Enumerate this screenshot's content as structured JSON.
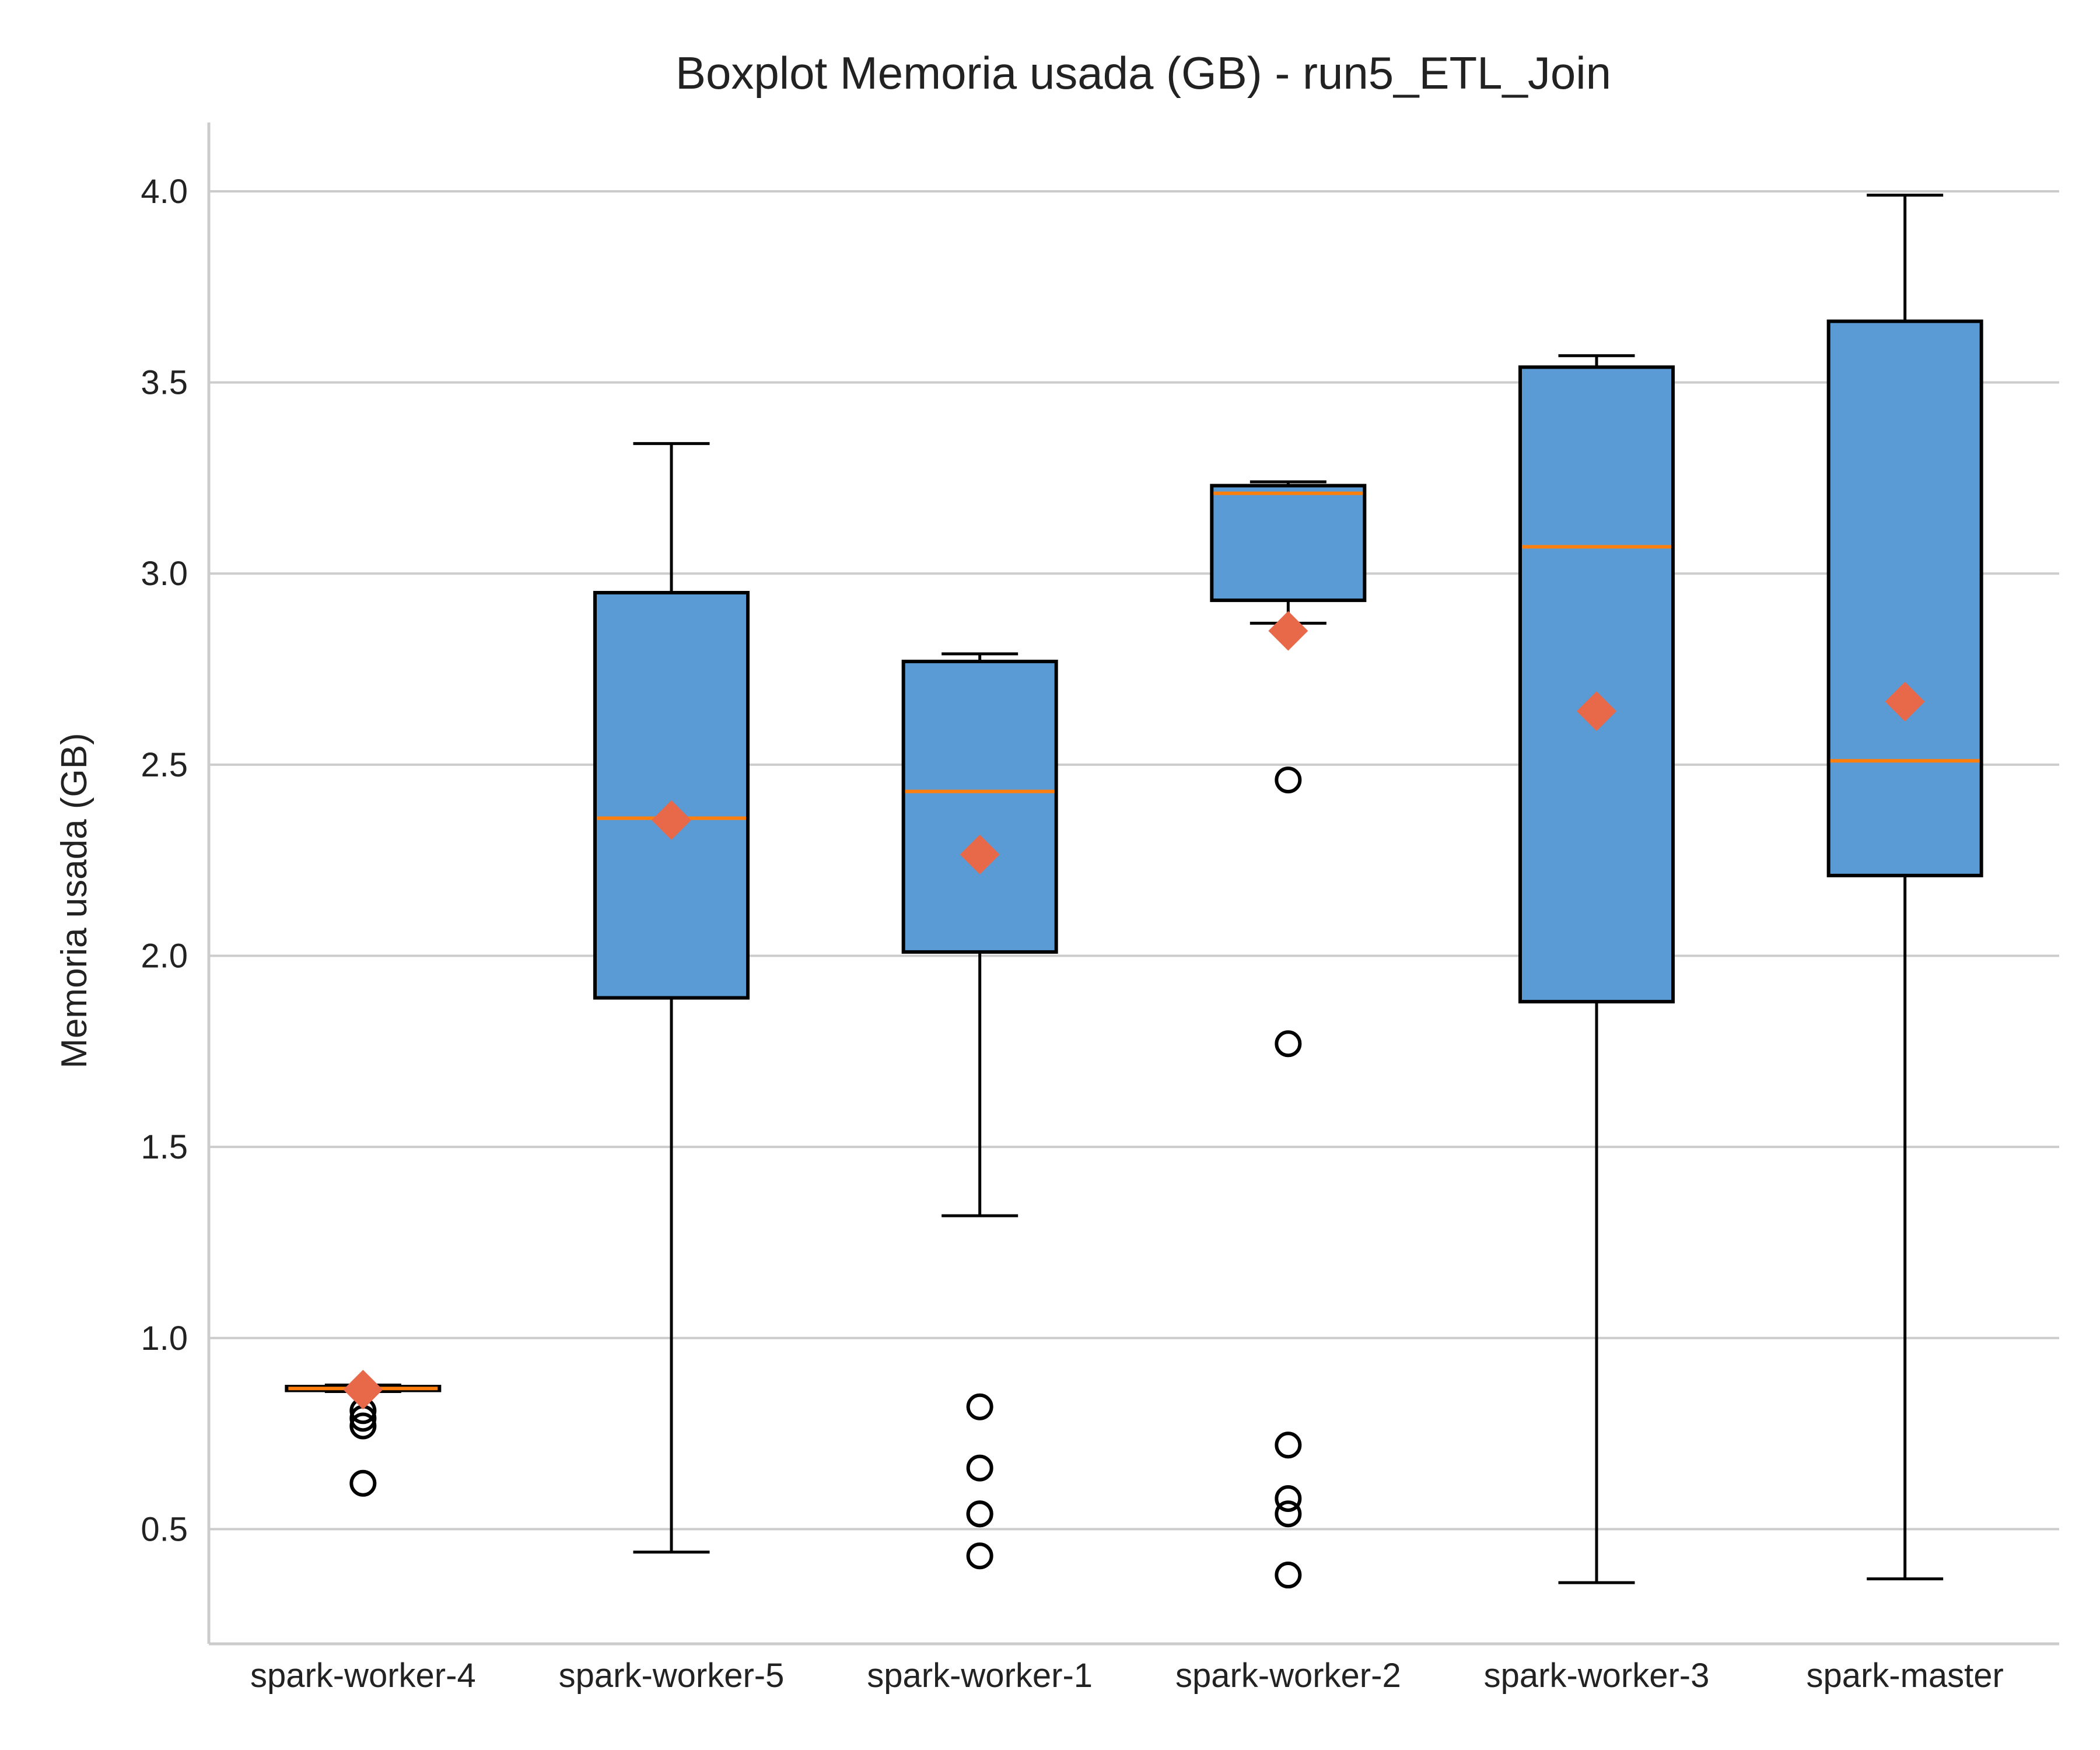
{
  "chart_data": {
    "type": "box",
    "title": "Boxplot Memoria usada (GB) - run5_ETL_Join",
    "xlabel": "",
    "ylabel": "Memoria usada (GB)",
    "ylim": [
      0.2,
      4.18
    ],
    "yticks": [
      "0.5",
      "1.0",
      "1.5",
      "2.0",
      "2.5",
      "3.0",
      "3.5",
      "4.0"
    ],
    "grid": "horizontal",
    "colors": {
      "box_fill": "#5b9bd5",
      "box_edge": "#000000",
      "median": "#ff7f0e",
      "mean_marker": "#e8694a",
      "grid": "#cccccc",
      "axis": "#cccccc"
    },
    "categories": [
      "spark-worker-4",
      "spark-worker-5",
      "spark-worker-1",
      "spark-worker-2",
      "spark-worker-3",
      "spark-master"
    ],
    "boxes": [
      {
        "label": "spark-worker-4",
        "whisker_low": 0.86,
        "q1": 0.863,
        "median": 0.868,
        "q3": 0.873,
        "whisker_high": 0.877,
        "mean": 0.865,
        "outliers": [
          0.62,
          0.77,
          0.79,
          0.81
        ]
      },
      {
        "label": "spark-worker-5",
        "whisker_low": 0.44,
        "q1": 1.89,
        "median": 2.36,
        "q3": 2.95,
        "whisker_high": 3.34,
        "mean": 2.355,
        "outliers": []
      },
      {
        "label": "spark-worker-1",
        "whisker_low": 1.32,
        "q1": 2.01,
        "median": 2.43,
        "q3": 2.77,
        "whisker_high": 2.79,
        "mean": 2.265,
        "outliers": [
          0.43,
          0.54,
          0.54,
          0.66,
          0.82
        ]
      },
      {
        "label": "spark-worker-2",
        "whisker_low": 2.87,
        "q1": 2.93,
        "median": 3.21,
        "q3": 3.23,
        "whisker_high": 3.24,
        "mean": 2.85,
        "outliers": [
          0.38,
          0.54,
          0.58,
          0.72,
          1.77,
          2.46
        ]
      },
      {
        "label": "spark-worker-3",
        "whisker_low": 0.36,
        "q1": 1.88,
        "median": 3.07,
        "q3": 3.54,
        "whisker_high": 3.57,
        "mean": 2.64,
        "outliers": []
      },
      {
        "label": "spark-master",
        "whisker_low": 0.37,
        "q1": 2.21,
        "median": 2.51,
        "q3": 3.66,
        "whisker_high": 3.99,
        "mean": 2.665,
        "outliers": []
      }
    ]
  }
}
